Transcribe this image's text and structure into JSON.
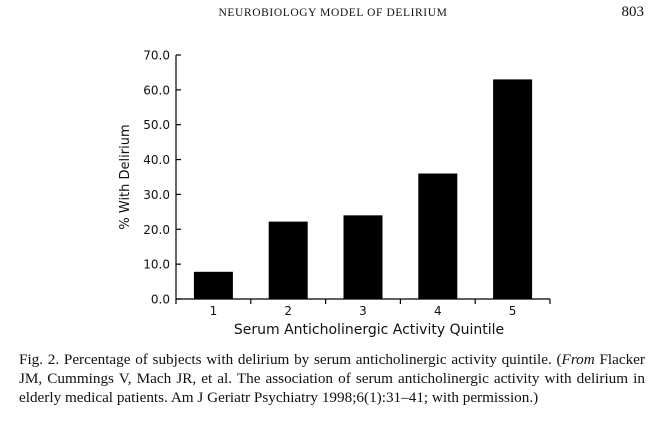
{
  "header": {
    "running_title": "NEUROBIOLOGY MODEL OF DELIRIUM",
    "page_number": "803"
  },
  "chart_data": {
    "type": "bar",
    "categories": [
      "1",
      "2",
      "3",
      "4",
      "5"
    ],
    "values": [
      7.8,
      22.2,
      24.0,
      36.0,
      63.0
    ],
    "xlabel": "Serum Anticholinergic Activity Quintile",
    "ylabel": "% With Delirium",
    "ylim": [
      0,
      70
    ],
    "yticks": [
      "0.0",
      "10.0",
      "20.0",
      "30.0",
      "40.0",
      "50.0",
      "60.0",
      "70.0"
    ],
    "bar_color": "#000000",
    "grid": false
  },
  "caption": {
    "lead": "Fig. 2. Percentage of subjects with delirium by serum anticholinergic activity quintile. (",
    "source_italic": "From",
    "rest": " Flacker JM, Cummings V, Mach JR, et al. The association of serum anticholinergic activity with delirium in elderly medical patients. Am J Geriatr Psychiatry 1998;6(1):31–41; with permission.)"
  }
}
